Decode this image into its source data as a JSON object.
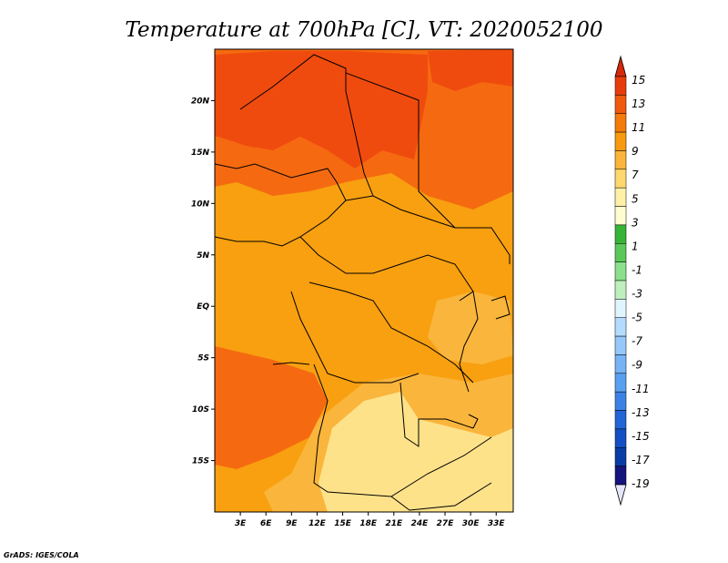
{
  "title": "Temperature at 700hPa [C], VT: 2020052100",
  "credit": "GrADS: IGES/COLA",
  "map": {
    "lon_range": [
      0,
      35
    ],
    "lat_range": [
      -20,
      25
    ],
    "lat_ticks": [
      {
        "value": 20,
        "label": "20N"
      },
      {
        "value": 15,
        "label": "15N"
      },
      {
        "value": 10,
        "label": "10N"
      },
      {
        "value": 5,
        "label": "5N"
      },
      {
        "value": 0,
        "label": "EQ"
      },
      {
        "value": -5,
        "label": "5S"
      },
      {
        "value": -10,
        "label": "10S"
      },
      {
        "value": -15,
        "label": "15S"
      }
    ],
    "lon_ticks": [
      {
        "value": 3,
        "label": "3E"
      },
      {
        "value": 6,
        "label": "6E"
      },
      {
        "value": 9,
        "label": "9E"
      },
      {
        "value": 12,
        "label": "12E"
      },
      {
        "value": 15,
        "label": "15E"
      },
      {
        "value": 18,
        "label": "18E"
      },
      {
        "value": 21,
        "label": "21E"
      },
      {
        "value": 24,
        "label": "24E"
      },
      {
        "value": 27,
        "label": "27E"
      },
      {
        "value": 30,
        "label": "30E"
      },
      {
        "value": 33,
        "label": "33E"
      }
    ]
  },
  "colorbar": {
    "labels": [
      "15",
      "13",
      "11",
      "9",
      "7",
      "5",
      "3",
      "1",
      "-1",
      "-3",
      "-5",
      "-7",
      "-9",
      "-11",
      "-13",
      "-15",
      "-17",
      "-19"
    ],
    "colors_top_to_bottom": [
      "#e73c0c",
      "#f05a0c",
      "#f47a0c",
      "#f89a10",
      "#fbb43c",
      "#fdd86e",
      "#fff0a8",
      "#fffcd0",
      "#37b437",
      "#5ac85a",
      "#8ce08c",
      "#bef0be",
      "#e1f5ff",
      "#b4dcff",
      "#96c8fa",
      "#78b4f5",
      "#5aa0f0",
      "#3c82e6",
      "#2364d7",
      "#1450c3",
      "#0a3ca5",
      "#14147d"
    ],
    "top_arrow_color": "#d62a0a",
    "bottom_arrow_color": "#e6e6fa"
  },
  "field_colors": {
    "c13": "#f04b0f",
    "c11": "#f56a10",
    "c9": "#f8a010",
    "c7": "#fab53c",
    "c5": "#fee28a"
  }
}
